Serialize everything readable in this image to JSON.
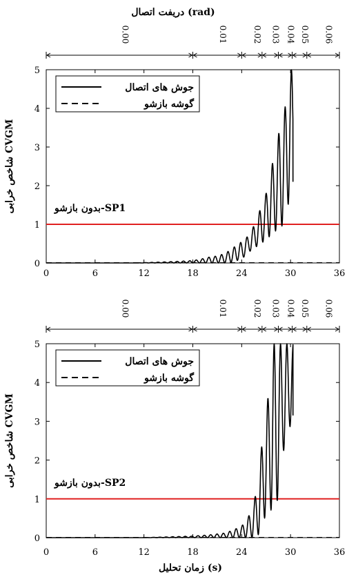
{
  "figure": {
    "top_axis_title": "دریفت اتصال (rad)",
    "bottom_axis_title": "زمان تحلیل (s)"
  },
  "chart_data": [
    {
      "type": "line",
      "panel": "SP1",
      "ylabel": "شاخص خرابی  CVGM",
      "xlim": [
        0,
        36
      ],
      "ylim": [
        0,
        5
      ],
      "x_ticks": [
        "0",
        "6",
        "12",
        "18",
        "24",
        "30",
        "36"
      ],
      "y_ticks": [
        "0",
        "1",
        "2",
        "3",
        "4",
        "5"
      ],
      "drift_labels": [
        "0.00",
        "0.01",
        "0.02",
        "0.03",
        "0.04",
        "0.05",
        "0.06"
      ],
      "drift_boundaries": [
        0,
        18,
        24,
        26.5,
        28.5,
        30.2,
        32,
        36
      ],
      "threshold": {
        "value": 1,
        "color": "#e02020"
      },
      "annotation": "بدون بازشو-SP1",
      "legend_position": "top-left",
      "series": [
        {
          "name": "جوش های اتصال",
          "style": "solid",
          "oscillation": {
            "start": 11,
            "period": 0.78,
            "peak_envelope": [
              [
                11,
                0.0
              ],
              [
                13,
                0.015
              ],
              [
                15,
                0.03
              ],
              [
                17,
                0.05
              ],
              [
                18,
                0.06
              ],
              [
                19,
                0.1
              ],
              [
                20,
                0.15
              ],
              [
                21,
                0.18
              ],
              [
                22,
                0.25
              ],
              [
                23,
                0.4
              ],
              [
                24,
                0.55
              ],
              [
                24.8,
                0.7
              ],
              [
                25.6,
                1.0
              ],
              [
                26.3,
                1.4
              ],
              [
                27.0,
                1.8
              ],
              [
                27.8,
                2.6
              ],
              [
                28.6,
                3.4
              ],
              [
                29.4,
                4.1
              ],
              [
                29.8,
                5.0
              ],
              [
                30.3,
                5.0
              ]
            ],
            "trough_envelope": [
              [
                11,
                0.0
              ],
              [
                22.5,
                0.0
              ],
              [
                24,
                0.1
              ],
              [
                25,
                0.3
              ],
              [
                26,
                0.45
              ],
              [
                27,
                0.6
              ],
              [
                28,
                0.8
              ],
              [
                29.2,
                1.0
              ],
              [
                30.3,
                2.1
              ]
            ]
          }
        },
        {
          "name": "گوشه بازشو",
          "style": "dashed",
          "points": [
            [
              0,
              0.005
            ],
            [
              36,
              0.005
            ]
          ]
        }
      ]
    },
    {
      "type": "line",
      "panel": "SP2",
      "ylabel": "شاخص خرابی  CVGM",
      "xlim": [
        0,
        36
      ],
      "ylim": [
        0,
        5
      ],
      "x_ticks": [
        "0",
        "6",
        "12",
        "18",
        "24",
        "30",
        "36"
      ],
      "y_ticks": [
        "0",
        "1",
        "2",
        "3",
        "4",
        "5"
      ],
      "drift_labels": [
        "0.00",
        "0.01",
        "0.02",
        "0.03",
        "0.04",
        "0.05",
        "0.06"
      ],
      "drift_boundaries": [
        0,
        18,
        24,
        26.5,
        28.5,
        30.2,
        32,
        36
      ],
      "threshold": {
        "value": 1,
        "color": "#e02020"
      },
      "annotation": "بدون بازشو-SP2",
      "legend_position": "top-left",
      "series": [
        {
          "name": "جوش های اتصال",
          "style": "solid",
          "oscillation": {
            "start": 12,
            "period": 0.78,
            "peak_envelope": [
              [
                12,
                0.0
              ],
              [
                15,
                0.02
              ],
              [
                18,
                0.04
              ],
              [
                20,
                0.07
              ],
              [
                22,
                0.12
              ],
              [
                23,
                0.2
              ],
              [
                24,
                0.3
              ],
              [
                24.6,
                0.45
              ],
              [
                25.2,
                0.7
              ],
              [
                25.9,
                1.25
              ],
              [
                26.7,
                2.85
              ],
              [
                27.5,
                4.0
              ],
              [
                27.9,
                5.0
              ],
              [
                28.5,
                5.0
              ],
              [
                29.2,
                5.0
              ],
              [
                30.3,
                5.0
              ]
            ],
            "trough_envelope": [
              [
                12,
                0.0
              ],
              [
                25.5,
                0.0
              ],
              [
                26.2,
                0.1
              ],
              [
                27.2,
                0.75
              ],
              [
                28.2,
                0.65
              ],
              [
                29.1,
                2.2
              ],
              [
                30.3,
                3.15
              ]
            ]
          }
        },
        {
          "name": "گوشه بازشو",
          "style": "dashed",
          "points": [
            [
              0,
              0.005
            ],
            [
              36,
              0.005
            ]
          ]
        }
      ]
    }
  ]
}
